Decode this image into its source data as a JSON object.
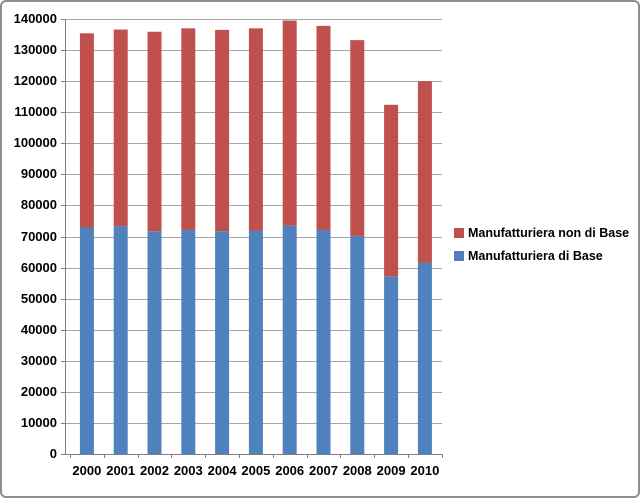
{
  "chart_data": {
    "type": "bar",
    "stacked": true,
    "title": "",
    "xlabel": "",
    "ylabel": "",
    "categories": [
      "2000",
      "2001",
      "2002",
      "2003",
      "2004",
      "2005",
      "2006",
      "2007",
      "2008",
      "2009",
      "2010"
    ],
    "series": [
      {
        "name": "Manufatturiera di Base",
        "color": "#4F81BD",
        "values": [
          72900,
          73300,
          71700,
          72100,
          71700,
          71800,
          73500,
          72100,
          70200,
          57200,
          61500
        ]
      },
      {
        "name": "Manufatturiera non di Base",
        "color": "#C0504D",
        "values": [
          62500,
          63300,
          64200,
          64900,
          64800,
          65200,
          66000,
          65700,
          63000,
          55200,
          58500
        ]
      }
    ],
    "stacked_totals": [
      135400,
      136600,
      135900,
      137000,
      136500,
      137000,
      139500,
      137800,
      133200,
      112400,
      120000
    ],
    "ylim": [
      0,
      140000
    ],
    "y_ticks": [
      0,
      10000,
      20000,
      30000,
      40000,
      50000,
      60000,
      70000,
      80000,
      90000,
      100000,
      110000,
      120000,
      130000,
      140000
    ],
    "grid": true,
    "legend_position": "right",
    "gridline_color": "#A6A6A6",
    "axis_color": "#808080"
  }
}
